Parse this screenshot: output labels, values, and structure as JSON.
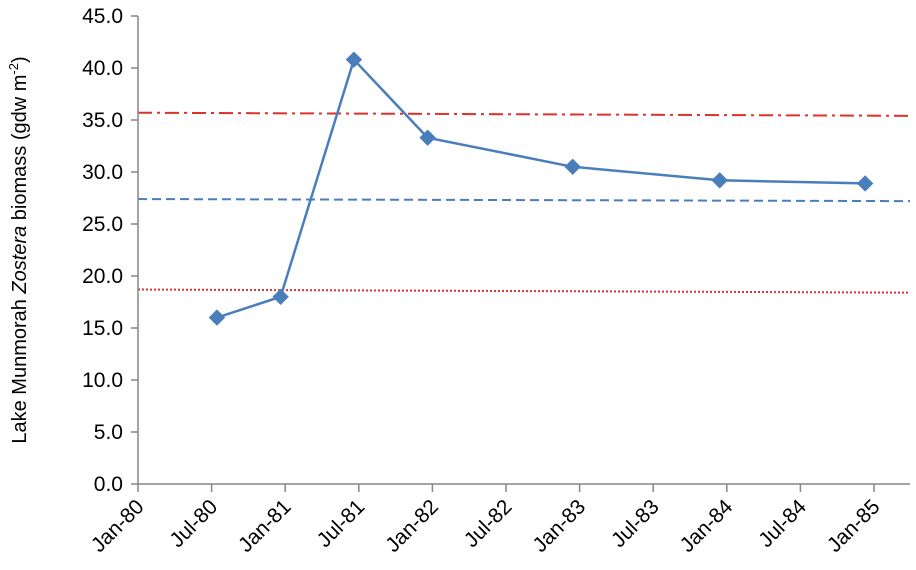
{
  "chart_data": {
    "type": "line",
    "ylabel_parts": {
      "prefix": "Lake Munmorah ",
      "italic": "Zostera",
      "suffix": " biomass (gdw m",
      "superscript": "-2",
      "end": ")"
    },
    "xlabel": "",
    "ylim": [
      0,
      45
    ],
    "y_ticks": [
      "0.0",
      "5.0",
      "10.0",
      "15.0",
      "20.0",
      "25.0",
      "30.0",
      "35.0",
      "40.0",
      "45.0"
    ],
    "x_ticks": [
      "Jan-80",
      "Jul-80",
      "Jan-81",
      "Jul-81",
      "Jan-82",
      "Jul-82",
      "Jan-83",
      "Jul-83",
      "Jan-84",
      "Jul-84",
      "Jan-85"
    ],
    "xlim": [
      "1980-01-01",
      "1985-04-01"
    ],
    "series": [
      {
        "x": [
          "1980-07-15",
          "1980-12-20",
          "1981-06-20",
          "1981-12-20",
          "1982-12-15",
          "1983-12-15",
          "1984-12-10"
        ],
        "values": [
          16.0,
          18.0,
          40.8,
          33.3,
          30.5,
          29.2,
          28.9
        ],
        "color": "#4a7ebb",
        "marker": "diamond"
      }
    ],
    "reference_lines": [
      {
        "start": 35.7,
        "end": 35.4,
        "color": "#e0302b",
        "style": "dash-dot"
      },
      {
        "start": 27.4,
        "end": 27.2,
        "color": "#4a7ebb",
        "style": "dashed"
      },
      {
        "start": 18.7,
        "end": 18.4,
        "color": "#e0302b",
        "style": "dotted"
      }
    ],
    "grid": false,
    "legend": "none"
  }
}
